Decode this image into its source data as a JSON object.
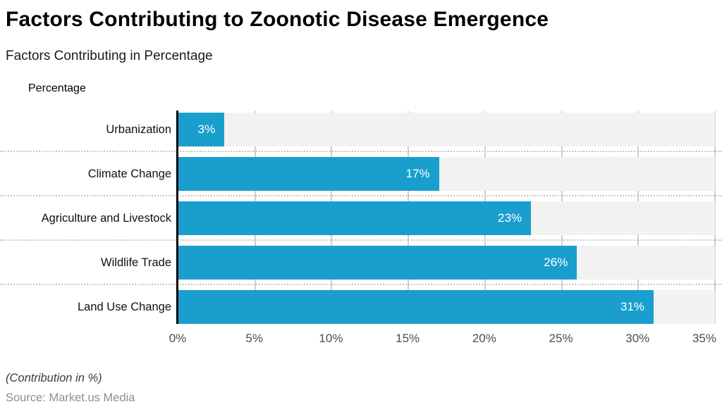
{
  "header": {
    "title": "Factors Contributing to Zoonotic Disease Emergence",
    "subtitle": "Factors Contributing in Percentage"
  },
  "legend": {
    "label": "Percentage",
    "swatch_color": "#1a9ece"
  },
  "chart_data": {
    "type": "bar",
    "orientation": "horizontal",
    "title": "Factors Contributing to Zoonotic Disease Emergence",
    "subtitle": "Factors Contributing in Percentage",
    "series_name": "Percentage",
    "categories": [
      "Urbanization",
      "Climate Change",
      "Agriculture and Livestock",
      "Wildlife Trade",
      "Land Use Change"
    ],
    "values": [
      3,
      17,
      23,
      26,
      31
    ],
    "value_labels": [
      "3%",
      "17%",
      "23%",
      "26%",
      "31%"
    ],
    "xlim": [
      0,
      35
    ],
    "x_tick_values": [
      0,
      5,
      10,
      15,
      20,
      25,
      30,
      35
    ],
    "x_tick_labels": [
      "0%",
      "5%",
      "10%",
      "15%",
      "20%",
      "25%",
      "30%",
      "35%"
    ],
    "grid": true,
    "legend_position": "top-left",
    "bar_color": "#1a9ece",
    "track_color": "#f2f2f2",
    "gridline_color": "#cfcfcf",
    "value_label_color": "#ffffff"
  },
  "footer": {
    "note": "(Contribution in %)",
    "source": "Source: Market.us Media"
  }
}
